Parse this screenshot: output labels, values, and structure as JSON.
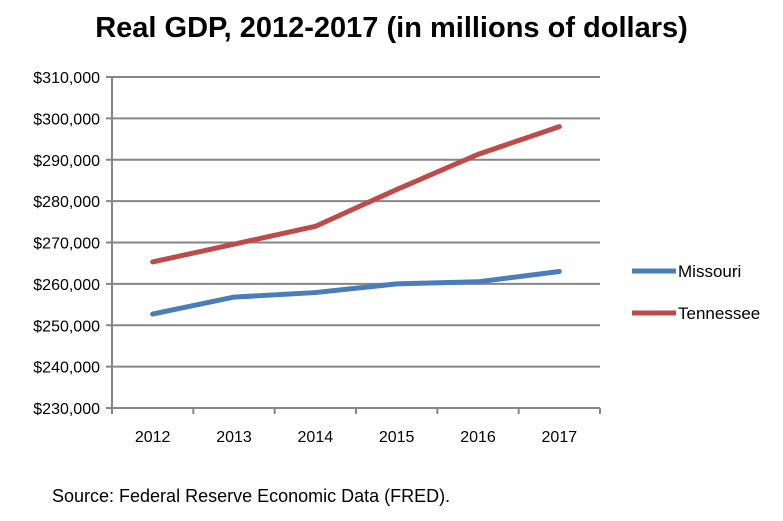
{
  "chart_data": {
    "type": "line",
    "title": "Real GDP, 2012-2017 (in millions of dollars)",
    "xlabel": "",
    "ylabel": "",
    "categories": [
      "2012",
      "2013",
      "2014",
      "2015",
      "2016",
      "2017"
    ],
    "ylim": [
      230000,
      310000
    ],
    "ytick_step": 10000,
    "ytick_labels": [
      "$230,000",
      "$240,000",
      "$250,000",
      "$260,000",
      "$270,000",
      "$280,000",
      "$290,000",
      "$300,000",
      "$310,000"
    ],
    "grid": "horizontal",
    "legend_placement": "right",
    "series": [
      {
        "name": "Missouri",
        "color": "#4a7ebb",
        "values": [
          252700,
          256800,
          257900,
          260000,
          260500,
          263000
        ]
      },
      {
        "name": "Tennessee",
        "color": "#be4b48",
        "values": [
          265300,
          269600,
          273900,
          282800,
          291300,
          298000
        ]
      }
    ]
  },
  "footer": {
    "source": "Source: Federal Reserve Economic Data (FRED)."
  }
}
